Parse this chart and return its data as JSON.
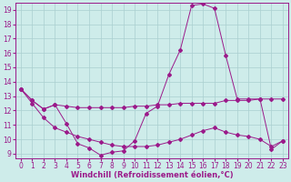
{
  "xlabel": "Windchill (Refroidissement éolien,°C)",
  "background_color": "#ceecea",
  "line_color": "#9b1a8a",
  "xlim": [
    -0.5,
    23.5
  ],
  "ylim": [
    8.7,
    19.5
  ],
  "xticks": [
    0,
    1,
    2,
    3,
    4,
    5,
    6,
    7,
    8,
    9,
    10,
    11,
    12,
    13,
    14,
    15,
    16,
    17,
    18,
    19,
    20,
    21,
    22,
    23
  ],
  "yticks": [
    9,
    10,
    11,
    12,
    13,
    14,
    15,
    16,
    17,
    18,
    19
  ],
  "line1_x": [
    0,
    1,
    2,
    3,
    4,
    5,
    6,
    7,
    8,
    9,
    10,
    11,
    12,
    13,
    14,
    15,
    16,
    17,
    18,
    19,
    20,
    21,
    22,
    23
  ],
  "line1_y": [
    13.5,
    12.7,
    12.1,
    12.4,
    11.1,
    9.7,
    9.4,
    8.9,
    9.1,
    9.2,
    9.9,
    11.8,
    12.3,
    14.5,
    16.2,
    19.3,
    19.4,
    19.1,
    15.8,
    12.8,
    12.8,
    12.8,
    9.3,
    9.9
  ],
  "line2_x": [
    0,
    1,
    2,
    3,
    4,
    5,
    6,
    7,
    8,
    9,
    10,
    11,
    12,
    13,
    14,
    15,
    16,
    17,
    18,
    19,
    20,
    21,
    22,
    23
  ],
  "line2_y": [
    13.5,
    12.7,
    12.1,
    12.4,
    12.3,
    12.2,
    12.2,
    12.2,
    12.2,
    12.2,
    12.3,
    12.3,
    12.4,
    12.4,
    12.5,
    12.5,
    12.5,
    12.5,
    12.7,
    12.7,
    12.7,
    12.8,
    12.8,
    12.8
  ],
  "line3_x": [
    0,
    1,
    2,
    3,
    4,
    5,
    6,
    7,
    8,
    9,
    10,
    11,
    12,
    13,
    14,
    15,
    16,
    17,
    18,
    19,
    20,
    21,
    22,
    23
  ],
  "line3_y": [
    13.5,
    12.5,
    11.5,
    10.8,
    10.5,
    10.2,
    10.0,
    9.8,
    9.6,
    9.5,
    9.5,
    9.5,
    9.6,
    9.8,
    10.0,
    10.3,
    10.6,
    10.8,
    10.5,
    10.3,
    10.2,
    10.0,
    9.5,
    9.9
  ],
  "grid_color": "#aacfcf",
  "tick_fontsize": 5.5,
  "label_fontsize": 6.0,
  "marker": "D",
  "marker_size": 2.0,
  "linewidth": 0.7
}
